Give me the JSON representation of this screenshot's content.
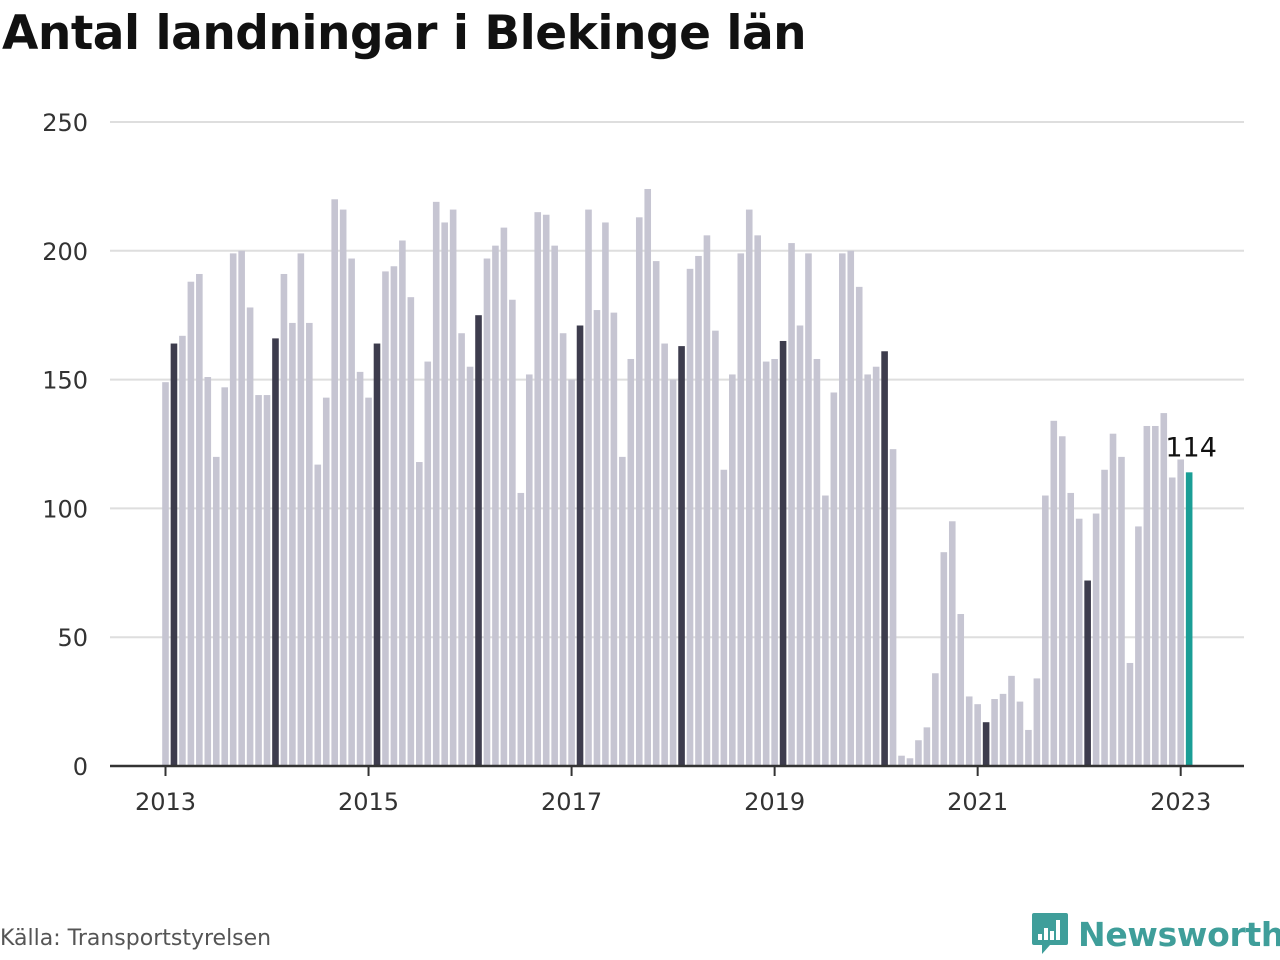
{
  "chart_data": {
    "type": "bar",
    "title": "Antal landningar i Blekinge län",
    "source": "Källa: Transportstyrelsen",
    "brand": "Newsworthy",
    "start": "2013-01",
    "y_ticks": [
      0,
      50,
      100,
      150,
      200,
      250
    ],
    "x_ticks": [
      "2013",
      "2015",
      "2017",
      "2019",
      "2021",
      "2023"
    ],
    "ylim": [
      0,
      250
    ],
    "grid": true,
    "colors": {
      "regular": "#c6c5d2",
      "january": "#3d3c4d",
      "latest": "#1a9e96",
      "grid": "#dedede",
      "axis": "#333333"
    },
    "highlight_label": "114",
    "values": [
      149,
      164,
      167,
      188,
      191,
      151,
      120,
      147,
      199,
      200,
      178,
      144,
      144,
      166,
      191,
      172,
      199,
      172,
      117,
      143,
      220,
      216,
      197,
      153,
      143,
      164,
      192,
      194,
      204,
      182,
      118,
      157,
      219,
      211,
      216,
      168,
      155,
      175,
      197,
      202,
      209,
      181,
      106,
      152,
      215,
      214,
      202,
      168,
      150,
      171,
      216,
      177,
      211,
      176,
      120,
      158,
      213,
      224,
      196,
      164,
      150,
      163,
      193,
      198,
      206,
      169,
      115,
      152,
      199,
      216,
      206,
      157,
      158,
      165,
      203,
      171,
      199,
      158,
      105,
      145,
      199,
      200,
      186,
      152,
      155,
      161,
      123,
      4,
      3,
      10,
      15,
      36,
      83,
      95,
      59,
      27,
      24,
      17,
      26,
      28,
      35,
      25,
      14,
      34,
      105,
      134,
      128,
      106,
      96,
      72,
      98,
      115,
      129,
      120,
      40,
      93,
      132,
      132,
      137,
      112,
      119,
      114
    ]
  },
  "brand_logo": "newsworthy-logo-icon"
}
